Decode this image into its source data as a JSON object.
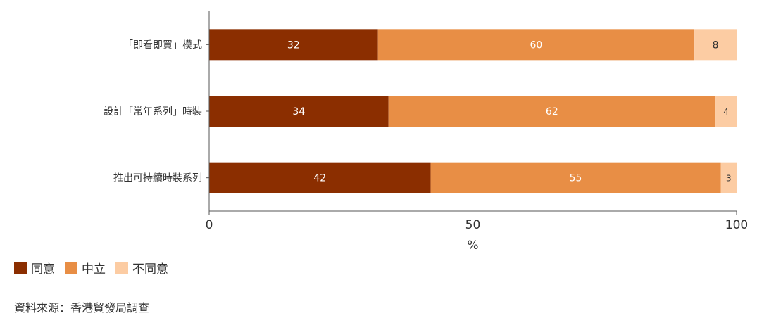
{
  "chart_data": {
    "type": "bar",
    "orientation": "horizontal",
    "stacked": true,
    "categories": [
      "「即看即買」模式",
      "設計「常年系列」時裝",
      "推出可持續時裝系列"
    ],
    "series": [
      {
        "name": "同意",
        "color": "#8B2E00",
        "values": [
          32,
          34,
          42
        ]
      },
      {
        "name": "中立",
        "color": "#E88E45",
        "values": [
          60,
          62,
          55
        ]
      },
      {
        "name": "不同意",
        "color": "#FCCCA3",
        "values": [
          8,
          4,
          3
        ]
      }
    ],
    "xlabel": "%",
    "xlim": [
      0,
      100
    ],
    "xticks": [
      "0",
      "50",
      "100"
    ],
    "grid": false,
    "legend_position": "bottom-left"
  },
  "source_text": "資料來源：香港貿發局調查"
}
